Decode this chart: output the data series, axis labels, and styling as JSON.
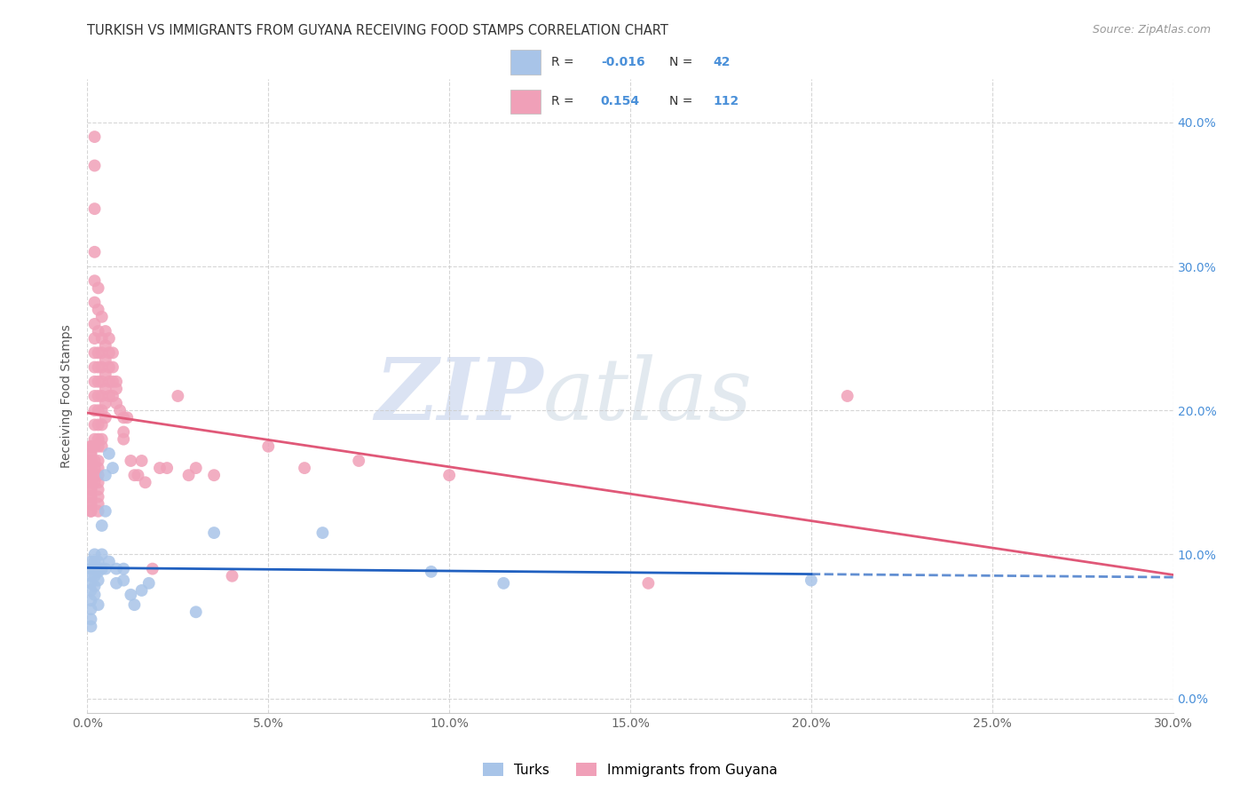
{
  "title": "TURKISH VS IMMIGRANTS FROM GUYANA RECEIVING FOOD STAMPS CORRELATION CHART",
  "source": "Source: ZipAtlas.com",
  "ylabel": "Receiving Food Stamps",
  "xlim": [
    0.0,
    0.3
  ],
  "ylim": [
    -0.01,
    0.43
  ],
  "turks_color": "#a8c4e8",
  "guyana_color": "#f0a0b8",
  "turks_line_color": "#2060c0",
  "guyana_line_color": "#e05878",
  "turks_R": -0.016,
  "turks_N": 42,
  "guyana_R": 0.154,
  "guyana_N": 112,
  "watermark_zip": "ZIP",
  "watermark_atlas": "atlas",
  "background_color": "#ffffff",
  "grid_color": "#cccccc",
  "title_color": "#333333",
  "axis_label_color": "#4a90d9",
  "turks_x": [
    0.001,
    0.001,
    0.001,
    0.001,
    0.001,
    0.001,
    0.001,
    0.001,
    0.001,
    0.002,
    0.002,
    0.002,
    0.002,
    0.002,
    0.002,
    0.003,
    0.003,
    0.003,
    0.003,
    0.004,
    0.004,
    0.004,
    0.005,
    0.005,
    0.005,
    0.006,
    0.006,
    0.007,
    0.008,
    0.008,
    0.01,
    0.01,
    0.012,
    0.013,
    0.015,
    0.017,
    0.03,
    0.035,
    0.065,
    0.095,
    0.115,
    0.2
  ],
  "turks_y": [
    0.095,
    0.09,
    0.085,
    0.08,
    0.075,
    0.068,
    0.062,
    0.055,
    0.05,
    0.1,
    0.095,
    0.09,
    0.085,
    0.078,
    0.072,
    0.095,
    0.088,
    0.082,
    0.065,
    0.12,
    0.1,
    0.09,
    0.155,
    0.13,
    0.09,
    0.17,
    0.095,
    0.16,
    0.09,
    0.08,
    0.09,
    0.082,
    0.072,
    0.065,
    0.075,
    0.08,
    0.06,
    0.115,
    0.115,
    0.088,
    0.08,
    0.082
  ],
  "guyana_x": [
    0.001,
    0.001,
    0.001,
    0.001,
    0.001,
    0.001,
    0.001,
    0.001,
    0.001,
    0.001,
    0.001,
    0.001,
    0.001,
    0.001,
    0.001,
    0.001,
    0.001,
    0.001,
    0.001,
    0.001,
    0.002,
    0.002,
    0.002,
    0.002,
    0.002,
    0.002,
    0.002,
    0.002,
    0.002,
    0.002,
    0.002,
    0.002,
    0.002,
    0.002,
    0.002,
    0.002,
    0.002,
    0.002,
    0.002,
    0.002,
    0.003,
    0.003,
    0.003,
    0.003,
    0.003,
    0.003,
    0.003,
    0.003,
    0.003,
    0.003,
    0.003,
    0.003,
    0.003,
    0.003,
    0.003,
    0.003,
    0.003,
    0.003,
    0.003,
    0.004,
    0.004,
    0.004,
    0.004,
    0.004,
    0.004,
    0.004,
    0.004,
    0.004,
    0.004,
    0.005,
    0.005,
    0.005,
    0.005,
    0.005,
    0.005,
    0.005,
    0.006,
    0.006,
    0.006,
    0.006,
    0.006,
    0.007,
    0.007,
    0.007,
    0.007,
    0.008,
    0.008,
    0.008,
    0.009,
    0.01,
    0.01,
    0.01,
    0.011,
    0.012,
    0.013,
    0.014,
    0.015,
    0.016,
    0.018,
    0.02,
    0.022,
    0.025,
    0.028,
    0.03,
    0.035,
    0.04,
    0.05,
    0.06,
    0.075,
    0.1,
    0.155,
    0.21
  ],
  "guyana_y": [
    0.175,
    0.17,
    0.165,
    0.16,
    0.155,
    0.15,
    0.145,
    0.14,
    0.135,
    0.13,
    0.175,
    0.17,
    0.165,
    0.16,
    0.155,
    0.15,
    0.145,
    0.14,
    0.135,
    0.13,
    0.39,
    0.37,
    0.34,
    0.31,
    0.29,
    0.275,
    0.26,
    0.25,
    0.24,
    0.23,
    0.22,
    0.21,
    0.2,
    0.19,
    0.18,
    0.175,
    0.165,
    0.16,
    0.155,
    0.15,
    0.285,
    0.27,
    0.255,
    0.24,
    0.23,
    0.22,
    0.21,
    0.2,
    0.19,
    0.18,
    0.175,
    0.165,
    0.16,
    0.155,
    0.15,
    0.145,
    0.14,
    0.135,
    0.13,
    0.265,
    0.25,
    0.24,
    0.23,
    0.22,
    0.21,
    0.2,
    0.19,
    0.18,
    0.175,
    0.255,
    0.245,
    0.235,
    0.225,
    0.215,
    0.205,
    0.195,
    0.25,
    0.24,
    0.23,
    0.22,
    0.21,
    0.24,
    0.23,
    0.22,
    0.21,
    0.22,
    0.215,
    0.205,
    0.2,
    0.195,
    0.185,
    0.18,
    0.195,
    0.165,
    0.155,
    0.155,
    0.165,
    0.15,
    0.09,
    0.16,
    0.16,
    0.21,
    0.155,
    0.16,
    0.155,
    0.085,
    0.175,
    0.16,
    0.165,
    0.155,
    0.08,
    0.21
  ]
}
